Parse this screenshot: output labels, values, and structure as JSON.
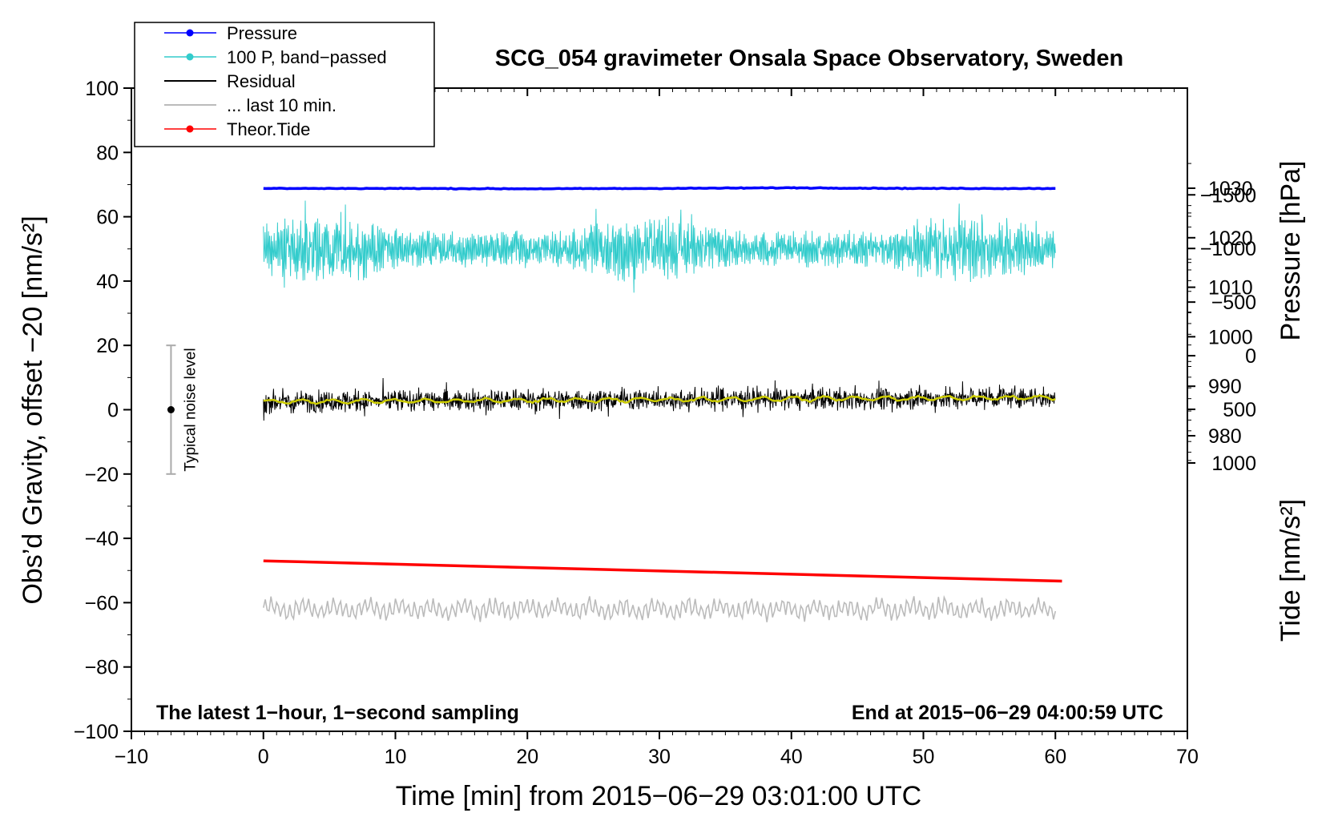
{
  "chart_data": {
    "type": "line",
    "title": "SCG_054 gravimeter Onsala Space Observatory, Sweden",
    "xlabel": "Time [min] from 2015−06−29 03:01:00 UTC",
    "ylabel_left": "Obs’d Gravity, offset −20 [nm/s²]",
    "ylabel_right_top": "Pressure [hPa]",
    "ylabel_right_bottom": "Tide [nm/s²]",
    "xlim": [
      -10,
      70
    ],
    "ylim_left": [
      -100,
      100
    ],
    "x_ticks": [
      -10,
      0,
      10,
      20,
      30,
      40,
      50,
      60,
      70
    ],
    "x_tick_labels": [
      "−10",
      "0",
      "10",
      "20",
      "30",
      "40",
      "50",
      "60",
      "70"
    ],
    "y_ticks_left": [
      -100,
      -80,
      -60,
      -40,
      -20,
      0,
      20,
      40,
      60,
      80,
      100
    ],
    "y_tick_labels_left": [
      "−100",
      "−80",
      "−60",
      "−40",
      "−20",
      "0",
      "20",
      "40",
      "60",
      "80",
      "100"
    ],
    "pressure_ticks": [
      980,
      990,
      1000,
      1010,
      1020,
      1030
    ],
    "pressure_tick_labels": [
      "980",
      "990",
      "1000",
      "1010",
      "1020",
      "1030"
    ],
    "tide_ticks": [
      -1500,
      -1000,
      -500,
      0,
      500,
      1000
    ],
    "tide_tick_labels": [
      "−1500",
      "−1000",
      "−500",
      "0",
      "500",
      "1000"
    ],
    "legend": {
      "placement": "top-left",
      "entries": [
        {
          "label": "Pressure",
          "color": "#0000ff",
          "marker": true
        },
        {
          "label": "100 P, band−passed",
          "color": "#33cccc",
          "marker": true
        },
        {
          "label": "Residual",
          "color": "#000000",
          "marker": false
        },
        {
          "label": "... last 10 min.",
          "color": "#bbbbbb",
          "marker": false
        },
        {
          "label": "Theor.Tide",
          "color": "#ff0000",
          "marker": true
        }
      ]
    },
    "series": [
      {
        "name": "Pressure",
        "color": "#0000ff",
        "x": [
          0,
          10,
          20,
          30,
          40,
          50,
          60
        ],
        "values": [
          68.8,
          68.8,
          68.7,
          68.8,
          69.0,
          68.8,
          68.8
        ],
        "unit": "nm/s² (left axis)"
      },
      {
        "name": "100 P, band−passed",
        "color": "#33cccc",
        "center": 50,
        "amplitude": 6,
        "x_range": [
          0,
          60
        ]
      },
      {
        "name": "Residual",
        "color": "#000000",
        "start": 2.5,
        "end": 3.8,
        "amplitude": 3.5,
        "x_range": [
          0,
          60
        ]
      },
      {
        "name": "... last 10 min.",
        "color": "#bbbbbb",
        "center": -62,
        "amplitude": 3.5,
        "x_range": [
          0,
          60
        ]
      },
      {
        "name": "Theor.Tide",
        "color": "#ff0000",
        "x": [
          0,
          60.5
        ],
        "values": [
          -47,
          -53.3
        ]
      }
    ],
    "smooth_color": "#cccc00",
    "noise_indicator": {
      "label": "Typical noise level",
      "x": -7,
      "center": 0,
      "range": [
        -20,
        20
      ]
    },
    "notes": {
      "left": "The latest 1−hour, 1−second sampling",
      "right": "End at 2015−06−29 04:00:59 UTC"
    }
  }
}
